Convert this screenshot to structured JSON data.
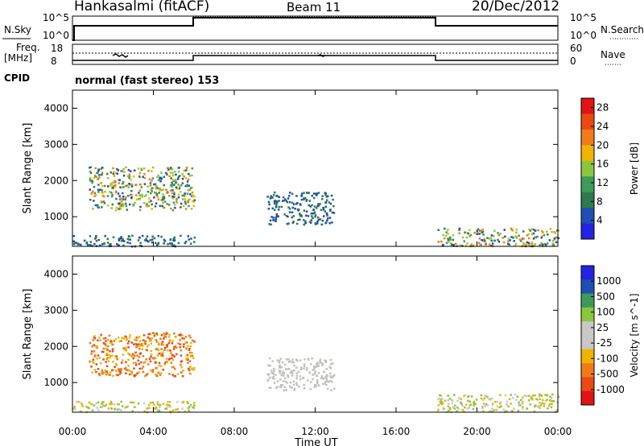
{
  "header": {
    "site": "Hankasalmi (fitACF)",
    "beam": "Beam 11",
    "date": "20/Dec/2012"
  },
  "strips": {
    "nsky_label": "N.Sky",
    "nsky_ticks": [
      "10^5",
      "10^0"
    ],
    "nsearch_label": "N.Search",
    "nsearch_ticks": [
      "10^5",
      "10^0"
    ],
    "freq_label_1": "Freq.",
    "freq_label_2": "[MHz]",
    "freq_ticks": [
      "18",
      "8"
    ],
    "nave_label": "Nave",
    "nave_ticks": [
      "60",
      "0"
    ],
    "cpid_label": "CPID",
    "cpid_text": "normal (fast stereo) 153"
  },
  "x_axis": {
    "label": "Time UT",
    "ticks": [
      "00:00",
      "04:00",
      "08:00",
      "12:00",
      "16:00",
      "20:00",
      "00:00"
    ]
  },
  "colors": {
    "power_scale": [
      "#2323e0",
      "#1f4fb0",
      "#2e7a4a",
      "#3d9a5a",
      "#8cc63f",
      "#f0b400",
      "#f07a1c",
      "#e84a14",
      "#e01414"
    ],
    "velocity_scale": [
      "#e01414",
      "#e84a14",
      "#f07a1c",
      "#f0b400",
      "#c8c8c8",
      "#c8c8c8",
      "#8cc63f",
      "#3d9a5a",
      "#1f4fb0",
      "#2323e0"
    ]
  },
  "chart_data": [
    {
      "type": "heatmap",
      "title": "",
      "xlabel": "Time UT",
      "ylabel": "Slant Range [km]",
      "x_unit": "hours UT",
      "xlim": [
        0,
        24
      ],
      "ylim": [
        180,
        4500
      ],
      "yticks": [
        "1000",
        "2000",
        "3000",
        "4000"
      ],
      "colorbar": {
        "label": "Power [dB]",
        "ticks": [
          "4",
          "8",
          "12",
          "16",
          "20",
          "24",
          "28"
        ],
        "range": [
          0,
          30
        ]
      },
      "echo_regions": [
        {
          "t_start": 0.8,
          "t_end": 6.0,
          "range_start": 1200,
          "range_end": 2400,
          "level": "mixed"
        },
        {
          "t_start": 0.0,
          "t_end": 6.0,
          "range_start": 200,
          "range_end": 500,
          "level": "low"
        },
        {
          "t_start": 9.6,
          "t_end": 12.9,
          "range_start": 800,
          "range_end": 1700,
          "level": "low"
        },
        {
          "t_start": 18.0,
          "t_end": 24.0,
          "range_start": 200,
          "range_end": 700,
          "level": "mixed"
        }
      ]
    },
    {
      "type": "heatmap",
      "title": "",
      "xlabel": "Time UT",
      "ylabel": "Slant Range [km]",
      "x_unit": "hours UT",
      "xlim": [
        0,
        24
      ],
      "ylim": [
        180,
        4500
      ],
      "yticks": [
        "1000",
        "2000",
        "3000",
        "4000"
      ],
      "colorbar": {
        "label": "Velocity [m s^-1]",
        "ticks": [
          "1000",
          "500",
          "100",
          "25",
          "-25",
          "-100",
          "-500",
          "-1000"
        ]
      },
      "echo_regions": [
        {
          "t_start": 0.8,
          "t_end": 6.0,
          "range_start": 1200,
          "range_end": 2400,
          "level": "negative"
        },
        {
          "t_start": 0.0,
          "t_end": 6.0,
          "range_start": 200,
          "range_end": 500,
          "level": "near-zero"
        },
        {
          "t_start": 9.6,
          "t_end": 12.9,
          "range_start": 800,
          "range_end": 1700,
          "level": "ground-scatter"
        },
        {
          "t_start": 18.0,
          "t_end": 24.0,
          "range_start": 200,
          "range_end": 700,
          "level": "near-zero"
        }
      ]
    }
  ]
}
